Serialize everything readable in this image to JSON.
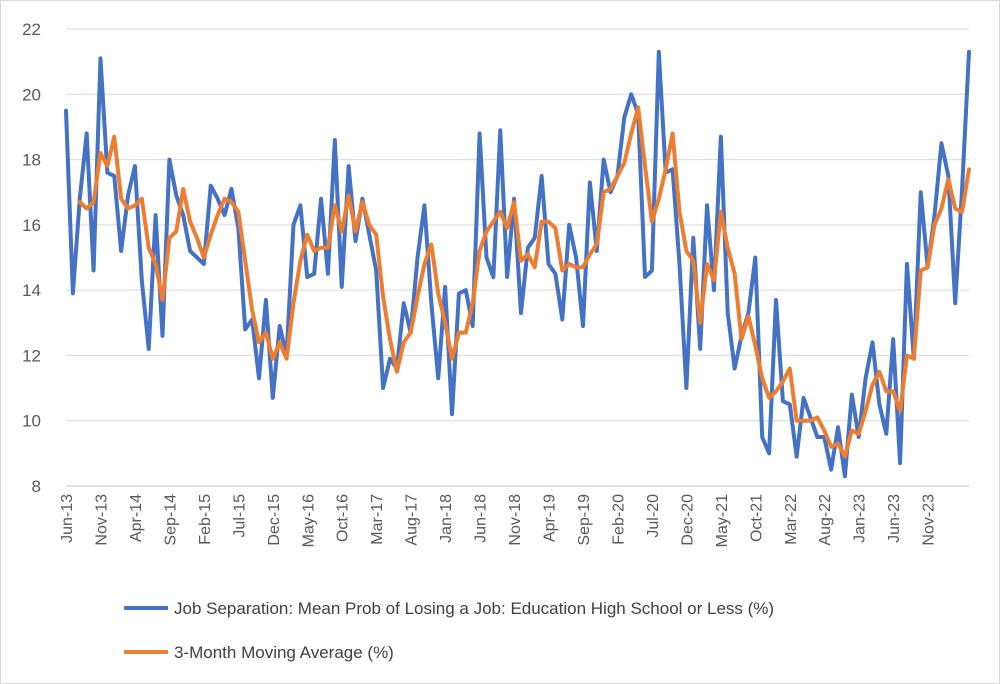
{
  "chart_data": {
    "type": "line",
    "title": "",
    "xlabel": "",
    "ylabel": "",
    "ylim": [
      8,
      22
    ],
    "yticks": [
      8,
      10,
      12,
      14,
      16,
      18,
      20,
      22
    ],
    "grid": "horizontal",
    "legend_position": "bottom",
    "x_tick_labels": [
      "Jun-13",
      "Nov-13",
      "Apr-14",
      "Sep-14",
      "Feb-15",
      "Jul-15",
      "Dec-15",
      "May-16",
      "Oct-16",
      "Mar-17",
      "Aug-17",
      "Jan-18",
      "Jun-18",
      "Nov-18",
      "Apr-19",
      "Sep-19",
      "Feb-20",
      "Jul-20",
      "Dec-20",
      "May-21",
      "Oct-21",
      "Mar-22",
      "Aug-22",
      "Jan-23",
      "Jun-23",
      "Nov-23"
    ],
    "x_tick_every": 5,
    "series": [
      {
        "name": "Job Separation: Mean Prob of Losing a Job: Education High School or Less (%)",
        "color": "#4472C4",
        "values": [
          19.5,
          13.9,
          16.8,
          18.8,
          14.6,
          21.1,
          17.6,
          17.5,
          15.2,
          16.9,
          17.8,
          14.3,
          12.2,
          16.3,
          12.6,
          18.0,
          16.9,
          16.3,
          15.2,
          15.0,
          14.8,
          17.2,
          16.8,
          16.3,
          17.1,
          15.9,
          12.8,
          13.1,
          11.3,
          13.7,
          10.7,
          12.9,
          12.0,
          16.0,
          16.6,
          14.4,
          14.5,
          16.8,
          14.5,
          18.6,
          14.1,
          17.8,
          15.5,
          16.8,
          15.7,
          14.6,
          11.0,
          11.9,
          11.6,
          13.6,
          12.7,
          15.0,
          16.6,
          13.6,
          11.3,
          14.1,
          10.2,
          13.9,
          14.0,
          12.9,
          18.8,
          15.0,
          14.4,
          18.9,
          14.4,
          16.8,
          13.3,
          15.3,
          15.6,
          17.5,
          14.8,
          14.5,
          13.1,
          16.0,
          15.0,
          12.9,
          17.3,
          15.2,
          18.0,
          17.0,
          17.5,
          19.3,
          20.0,
          19.4,
          14.4,
          14.6,
          21.3,
          17.6,
          17.7,
          14.8,
          11.0,
          15.6,
          12.2,
          16.6,
          14.0,
          18.7,
          13.3,
          11.6,
          12.6,
          13.3,
          15.0,
          9.5,
          9.0,
          13.7,
          10.6,
          10.5,
          8.9,
          10.7,
          10.1,
          9.5,
          9.5,
          8.5,
          9.8,
          8.3,
          10.8,
          9.5,
          11.3,
          12.4,
          10.5,
          9.6,
          12.5,
          8.7,
          14.8,
          11.9,
          17.0,
          14.7,
          16.3,
          18.5,
          17.5,
          13.6,
          17.1,
          21.3
        ]
      },
      {
        "name": "3-Month Moving Average (%)",
        "color": "#ED7D31",
        "values": [
          null,
          null,
          16.7,
          16.5,
          16.7,
          18.2,
          17.8,
          18.7,
          16.8,
          16.5,
          16.6,
          16.8,
          15.3,
          14.8,
          13.7,
          15.6,
          15.8,
          17.1,
          16.1,
          15.6,
          15.0,
          15.7,
          16.3,
          16.8,
          16.7,
          16.4,
          14.9,
          13.4,
          12.4,
          12.7,
          11.9,
          12.4,
          11.9,
          13.6,
          14.9,
          15.7,
          15.2,
          15.3,
          15.3,
          16.6,
          15.8,
          16.9,
          15.8,
          16.7,
          16.0,
          15.7,
          13.8,
          12.5,
          11.5,
          12.4,
          12.7,
          13.8,
          14.8,
          15.4,
          13.9,
          13.0,
          11.9,
          12.7,
          12.7,
          13.6,
          15.2,
          15.8,
          16.1,
          16.4,
          15.9,
          16.7,
          14.9,
          15.1,
          14.7,
          16.1,
          16.1,
          15.9,
          14.6,
          14.8,
          14.7,
          14.7,
          15.1,
          15.4,
          17.0,
          17.1,
          17.5,
          17.9,
          18.8,
          19.6,
          17.8,
          16.1,
          16.8,
          17.7,
          18.8,
          16.4,
          15.2,
          14.9,
          13.0,
          14.8,
          14.3,
          16.4,
          15.3,
          14.5,
          12.5,
          13.2,
          12.3,
          11.3,
          10.7,
          10.9,
          11.2,
          11.6,
          10.0,
          10.0,
          10.0,
          10.1,
          9.7,
          9.2,
          9.3,
          8.9,
          9.7,
          9.6,
          10.3,
          11.1,
          11.5,
          10.9,
          10.9,
          10.3,
          12.0,
          11.9,
          14.6,
          14.7,
          16.0,
          16.5,
          17.4,
          16.5,
          16.4,
          17.7
        ]
      }
    ]
  }
}
